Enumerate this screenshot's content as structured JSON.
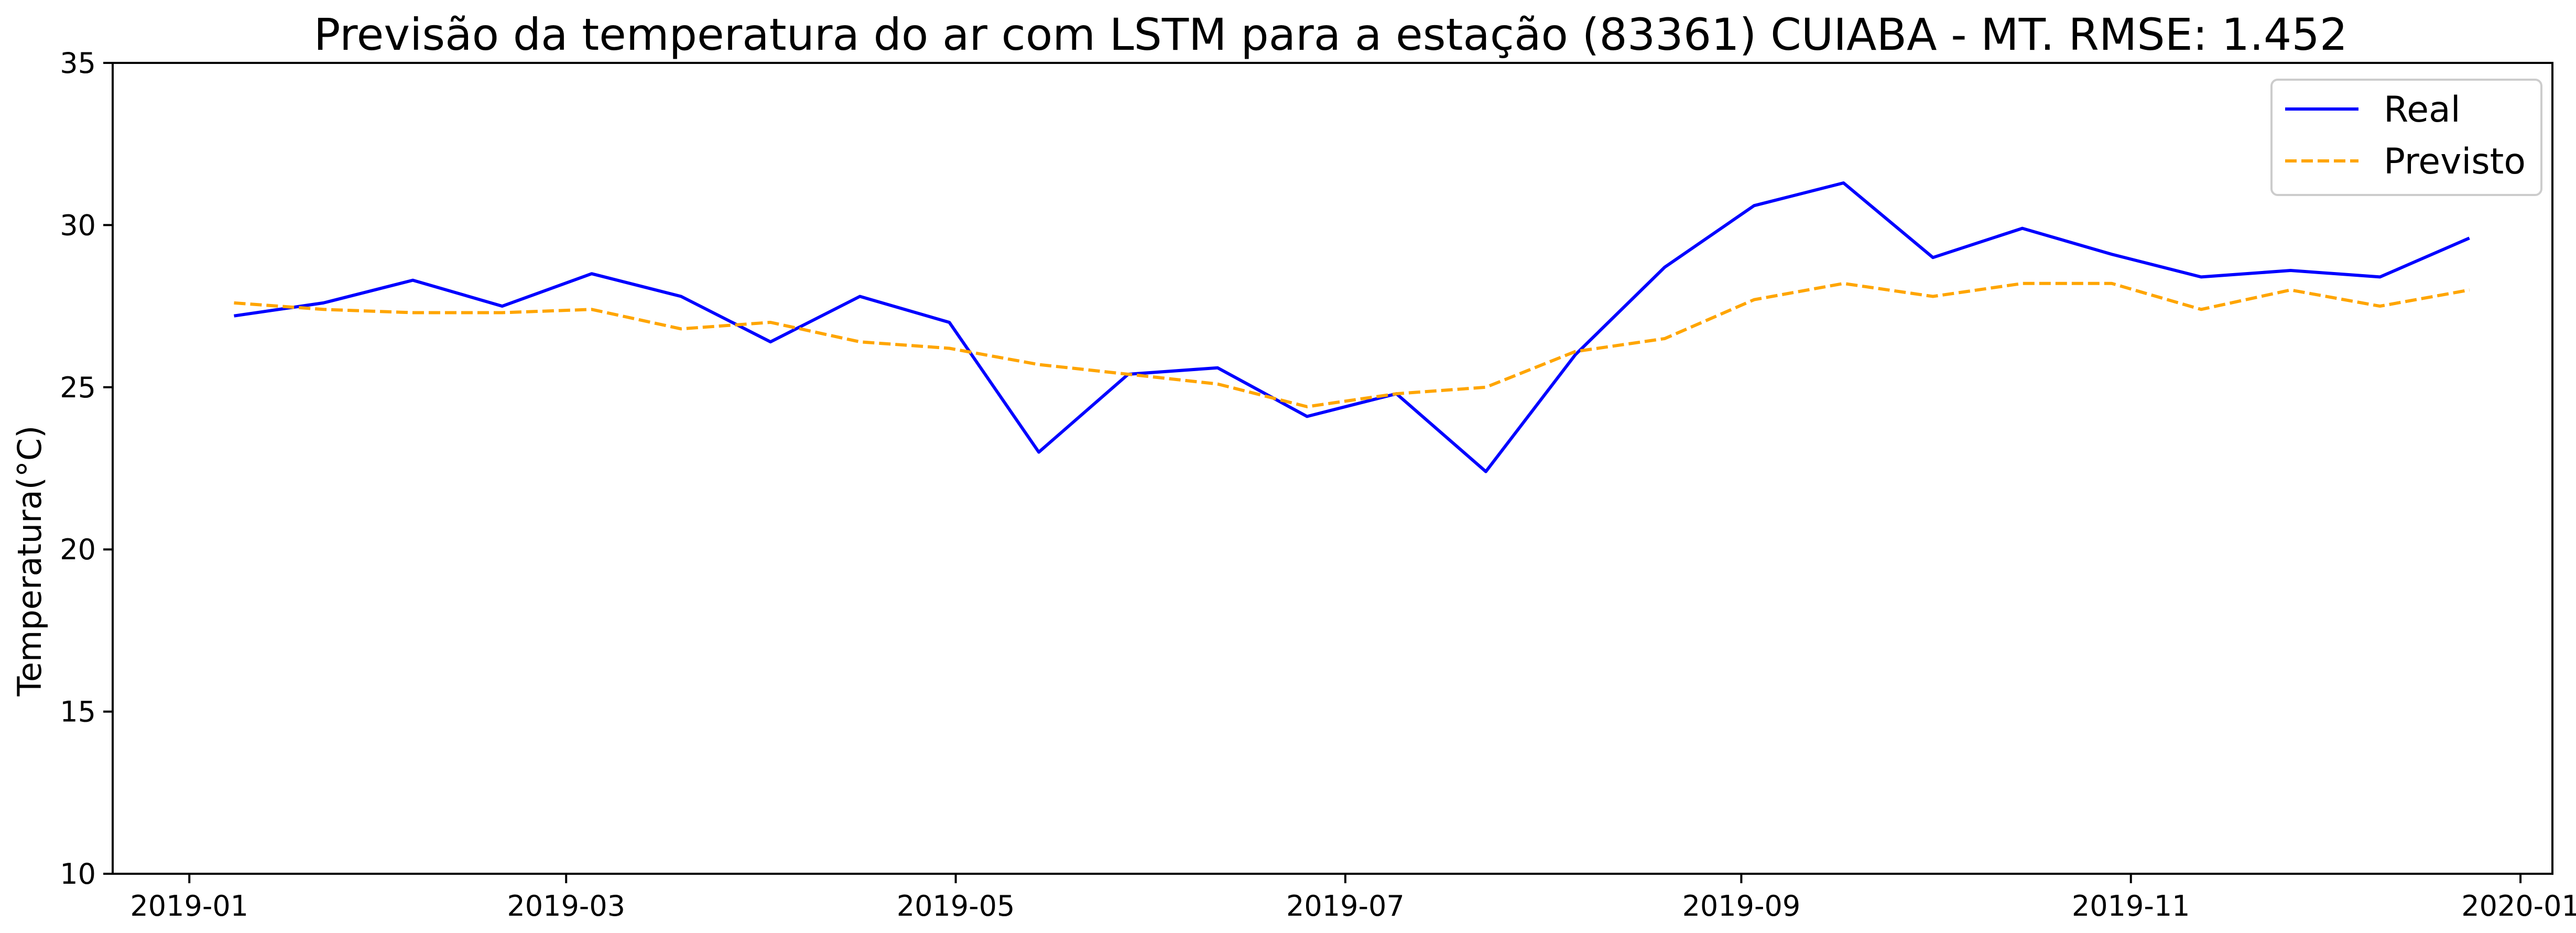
{
  "chart_data": {
    "type": "line",
    "title": "Previsão da temperatura do ar com LSTM para a estação (83361) CUIABA - MT. RMSE: 1.452",
    "xlabel": "",
    "ylabel": "Temperatura(°C)",
    "xlim": [
      "2018-12-20",
      "2020-01-06"
    ],
    "ylim": [
      10,
      35
    ],
    "x_ticks": [
      "2019-01",
      "2019-03",
      "2019-05",
      "2019-07",
      "2019-09",
      "2019-11",
      "2020-01"
    ],
    "y_ticks": [
      10,
      15,
      20,
      25,
      30,
      35
    ],
    "grid": false,
    "legend_position": "top-right",
    "x": [
      "2019-01-08",
      "2019-01-22",
      "2019-02-05",
      "2019-02-19",
      "2019-03-05",
      "2019-03-19",
      "2019-04-02",
      "2019-04-16",
      "2019-04-30",
      "2019-05-14",
      "2019-05-28",
      "2019-06-11",
      "2019-06-25",
      "2019-07-09",
      "2019-07-23",
      "2019-08-06",
      "2019-08-20",
      "2019-09-03",
      "2019-09-17",
      "2019-10-01",
      "2019-10-15",
      "2019-10-29",
      "2019-11-12",
      "2019-11-26",
      "2019-12-10",
      "2019-12-24"
    ],
    "series": [
      {
        "name": "Real",
        "color": "#0000ff",
        "style": "solid",
        "values": [
          27.2,
          27.6,
          28.3,
          27.5,
          28.5,
          27.8,
          26.4,
          27.8,
          27.0,
          23.0,
          25.4,
          25.6,
          24.1,
          24.8,
          22.4,
          26.0,
          28.7,
          30.6,
          31.3,
          29.0,
          29.9,
          29.1,
          28.4,
          28.6,
          28.4,
          29.6
        ]
      },
      {
        "name": "Previsto",
        "color": "#ffa500",
        "style": "dashed",
        "values": [
          27.6,
          27.4,
          27.3,
          27.3,
          27.4,
          26.8,
          27.0,
          26.4,
          26.2,
          25.7,
          25.4,
          25.1,
          24.4,
          24.8,
          25.0,
          26.1,
          26.5,
          27.7,
          28.2,
          27.8,
          28.2,
          28.2,
          27.4,
          28.0,
          27.5,
          28.0
        ]
      }
    ]
  }
}
